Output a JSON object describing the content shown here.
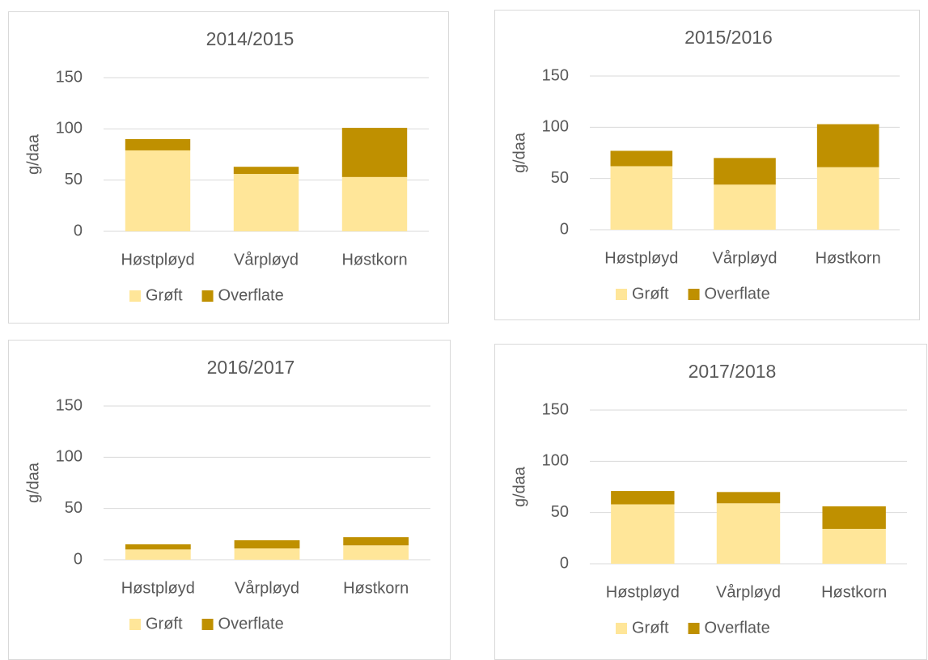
{
  "chart_data": [
    {
      "type": "bar",
      "stacked": true,
      "title": "2014/2015",
      "y_label": "g/daa",
      "categories": [
        "Høstpløyd",
        "Vårpløyd",
        "Høstkorn"
      ],
      "series": [
        {
          "name": "Grøft",
          "color": "#ffe699",
          "values": [
            79,
            56,
            53
          ]
        },
        {
          "name": "Overflate",
          "color": "#bf9000",
          "values": [
            11,
            7,
            48
          ]
        }
      ],
      "ylim": [
        0,
        150
      ],
      "yticks": [
        0,
        50,
        100,
        150
      ],
      "grid": true,
      "legend": "bottom"
    },
    {
      "type": "bar",
      "stacked": true,
      "title": "2015/2016",
      "y_label": "g/daa",
      "categories": [
        "Høstpløyd",
        "Vårpløyd",
        "Høstkorn"
      ],
      "series": [
        {
          "name": "Grøft",
          "color": "#ffe699",
          "values": [
            62,
            44,
            61
          ]
        },
        {
          "name": "Overflate",
          "color": "#bf9000",
          "values": [
            15,
            26,
            42
          ]
        }
      ],
      "ylim": [
        0,
        150
      ],
      "yticks": [
        0,
        50,
        100,
        150
      ],
      "grid": true,
      "legend": "bottom"
    },
    {
      "type": "bar",
      "stacked": true,
      "title": "2016/2017",
      "y_label": "g/daa",
      "categories": [
        "Høstpløyd",
        "Vårpløyd",
        "Høstkorn"
      ],
      "series": [
        {
          "name": "Grøft",
          "color": "#ffe699",
          "values": [
            10,
            11,
            14
          ]
        },
        {
          "name": "Overflate",
          "color": "#bf9000",
          "values": [
            5,
            8,
            8
          ]
        }
      ],
      "ylim": [
        0,
        150
      ],
      "yticks": [
        0,
        50,
        100,
        150
      ],
      "grid": true,
      "legend": "bottom"
    },
    {
      "type": "bar",
      "stacked": true,
      "title": "2017/2018",
      "y_label": "g/daa",
      "categories": [
        "Høstpløyd",
        "Vårpløyd",
        "Høstkorn"
      ],
      "series": [
        {
          "name": "Grøft",
          "color": "#ffe699",
          "values": [
            58,
            59,
            34
          ]
        },
        {
          "name": "Overflate",
          "color": "#bf9000",
          "values": [
            13,
            11,
            22
          ]
        }
      ],
      "ylim": [
        0,
        150
      ],
      "yticks": [
        0,
        50,
        100,
        150
      ],
      "grid": true,
      "legend": "bottom"
    }
  ]
}
